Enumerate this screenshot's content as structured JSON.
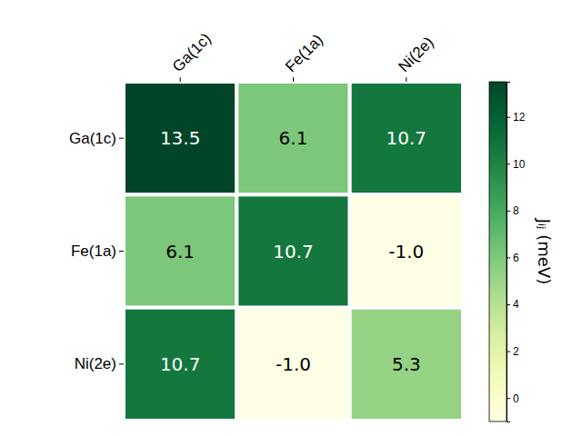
{
  "chart_data": {
    "type": "heatmap",
    "x_categories": [
      "Ga(1c)",
      "Fe(1a)",
      "Ni(2e)"
    ],
    "y_categories": [
      "Ga(1c)",
      "Fe(1a)",
      "Ni(2e)"
    ],
    "cells": [
      [
        13.5,
        6.1,
        10.7
      ],
      [
        6.1,
        10.7,
        -1.0
      ],
      [
        10.7,
        -1.0,
        5.3
      ]
    ],
    "value_labels": [
      [
        "13.5",
        "6.1",
        "10.7"
      ],
      [
        "6.1",
        "10.7",
        "-1.0"
      ],
      [
        "10.7",
        "-1.0",
        "5.3"
      ]
    ],
    "data_labels": true,
    "color": "YlGn",
    "colorbar": {
      "label": "Jᵢⱼ (meV)",
      "range": [
        -1.0,
        13.5
      ],
      "ticks": [
        0,
        2,
        4,
        6,
        8,
        10,
        12
      ]
    }
  }
}
